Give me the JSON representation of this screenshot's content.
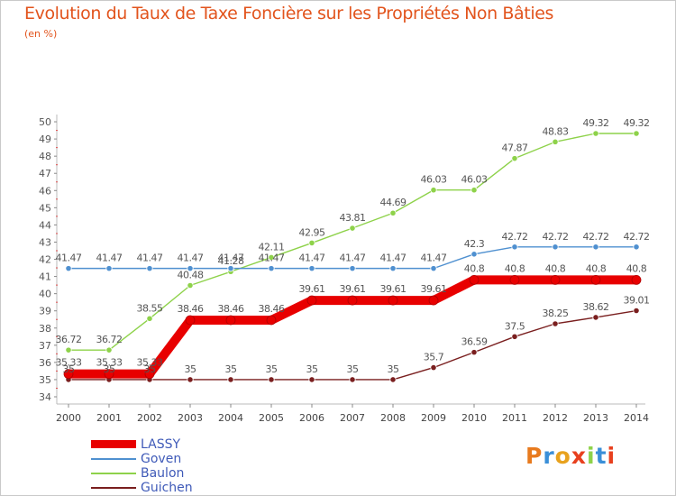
{
  "title": "Evolution du Taux de Taxe Foncière sur les Propriétés Non Bâties",
  "unit_label": "(en %)",
  "brand_logo": "Proxiti",
  "chart_data": {
    "type": "line",
    "x": [
      "2000",
      "2001",
      "2002",
      "2003",
      "2004",
      "2005",
      "2006",
      "2007",
      "2008",
      "2009",
      "2010",
      "2011",
      "2012",
      "2013",
      "2014"
    ],
    "ylim": [
      34,
      50
    ],
    "yticks": [
      34,
      35,
      36,
      37,
      38,
      39,
      40,
      41,
      42,
      43,
      44,
      45,
      46,
      47,
      48,
      49,
      50
    ],
    "grid": false,
    "legend_position": "bottom-left",
    "series": [
      {
        "name": "Guichen",
        "color": "#7a1f1f",
        "values": [
          35,
          35,
          35,
          35,
          35,
          35,
          35,
          35,
          35,
          35.7,
          36.59,
          37.5,
          38.25,
          38.62,
          39.01
        ],
        "labels": [
          "35",
          "35",
          "35",
          "35",
          "35",
          "35",
          "35",
          "35",
          "35",
          "35.7",
          "36.59",
          "37.5",
          "38.25",
          "38.62",
          "39.01"
        ]
      },
      {
        "name": "Baulon",
        "color": "#8ed24a",
        "values": [
          36.72,
          36.72,
          38.55,
          40.48,
          41.28,
          42.11,
          42.95,
          43.81,
          44.69,
          46.03,
          46.03,
          47.87,
          48.83,
          49.32,
          49.32
        ],
        "labels": [
          "36.72",
          "36.72",
          "38.55",
          "40.48",
          "41.28",
          "42.11",
          "42.95",
          "43.81",
          "44.69",
          "46.03",
          "46.03",
          "47.87",
          "48.83",
          "49.32",
          "49.32"
        ]
      },
      {
        "name": "Goven",
        "color": "#4f90d0",
        "values": [
          41.47,
          41.47,
          41.47,
          41.47,
          41.47,
          41.47,
          41.47,
          41.47,
          41.47,
          41.47,
          42.3,
          42.72,
          42.72,
          42.72,
          42.72
        ],
        "labels": [
          "41.47",
          "41.47",
          "41.47",
          "41.47",
          "41.47",
          "41.47",
          "41.47",
          "41.47",
          "41.47",
          "41.47",
          "42.3",
          "42.72",
          "42.72",
          "42.72",
          "42.72"
        ]
      },
      {
        "name": "LASSY",
        "color": "#e80000",
        "values": [
          35.33,
          35.33,
          35.33,
          38.46,
          38.46,
          38.46,
          39.61,
          39.61,
          39.61,
          39.61,
          40.8,
          40.8,
          40.8,
          40.8,
          40.8
        ],
        "labels": [
          "35.33",
          "35.33",
          "35.33",
          "38.46",
          "38.46",
          "38.46",
          "39.61",
          "39.61",
          "39.61",
          "39.61",
          "40.8",
          "40.8",
          "40.8",
          "40.8",
          "40.8"
        ]
      }
    ],
    "legend": [
      "LASSY",
      "Goven",
      "Baulon",
      "Guichen"
    ]
  }
}
